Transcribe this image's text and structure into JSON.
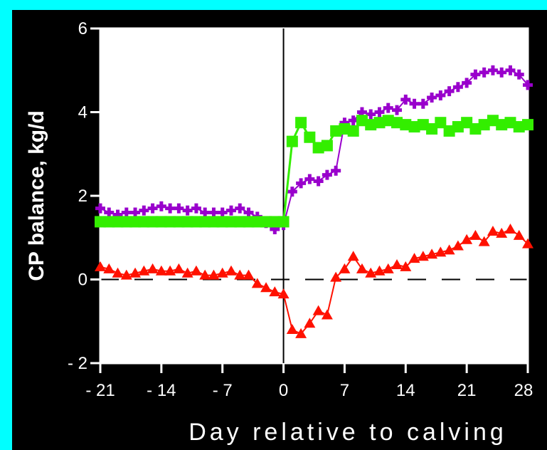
{
  "colors": {
    "border": "#00ffff",
    "background": "#000000",
    "axis": "#ffffff",
    "plot_area": "#ffffff",
    "zero_line": "#000000"
  },
  "chart_data": {
    "type": "line",
    "title": "",
    "xlabel": "Day relative to calving",
    "ylabel": "CP balance, kg/d",
    "xlim": [
      -21,
      28
    ],
    "ylim": [
      -2,
      6
    ],
    "x_ticks": [
      -21,
      -14,
      -7,
      0,
      7,
      14,
      21,
      28
    ],
    "x_tick_labels": [
      "- 21",
      "- 14",
      "- 7",
      "0",
      "7",
      "14",
      "21",
      "28"
    ],
    "y_ticks": [
      -2,
      0,
      2,
      4,
      6
    ],
    "y_tick_labels": [
      "- 2",
      "0",
      "2",
      "4",
      "6"
    ],
    "vertical_line_x": 0,
    "dashed_reference_y": 0,
    "grid": false,
    "legend": "none",
    "series": [
      {
        "color": "#9900cc",
        "marker": "plus",
        "x": [
          -21,
          -20,
          -19,
          -18,
          -17,
          -16,
          -15,
          -14,
          -13,
          -12,
          -11,
          -10,
          -9,
          -8,
          -7,
          -6,
          -5,
          -4,
          -3,
          -2,
          -1,
          0,
          1,
          2,
          3,
          4,
          5,
          6,
          7,
          8,
          9,
          10,
          11,
          12,
          13,
          14,
          15,
          16,
          17,
          18,
          19,
          20,
          21,
          22,
          23,
          24,
          25,
          26,
          27,
          28
        ],
        "y": [
          1.7,
          1.6,
          1.55,
          1.6,
          1.6,
          1.65,
          1.7,
          1.75,
          1.7,
          1.7,
          1.65,
          1.7,
          1.6,
          1.6,
          1.6,
          1.65,
          1.7,
          1.6,
          1.5,
          1.35,
          1.2,
          1.3,
          2.1,
          2.3,
          2.4,
          2.35,
          2.5,
          2.6,
          3.75,
          3.8,
          4.0,
          3.95,
          4.0,
          4.1,
          4.05,
          4.3,
          4.2,
          4.2,
          4.35,
          4.4,
          4.5,
          4.6,
          4.7,
          4.9,
          4.95,
          5.0,
          4.95,
          5.0,
          4.9,
          4.65
        ]
      },
      {
        "color": "#33ee00",
        "marker": "square",
        "x": [
          -21,
          -20,
          -19,
          -18,
          -17,
          -16,
          -15,
          -14,
          -13,
          -12,
          -11,
          -10,
          -9,
          -8,
          -7,
          -6,
          -5,
          -4,
          -3,
          -2,
          -1,
          0,
          1,
          2,
          3,
          4,
          5,
          6,
          7,
          8,
          9,
          10,
          11,
          12,
          13,
          14,
          15,
          16,
          17,
          18,
          19,
          20,
          21,
          22,
          23,
          24,
          25,
          26,
          27,
          28
        ],
        "y": [
          1.38,
          1.38,
          1.38,
          1.38,
          1.38,
          1.38,
          1.38,
          1.38,
          1.38,
          1.38,
          1.38,
          1.38,
          1.38,
          1.38,
          1.38,
          1.38,
          1.38,
          1.38,
          1.38,
          1.38,
          1.38,
          1.38,
          3.3,
          3.75,
          3.4,
          3.15,
          3.2,
          3.55,
          3.6,
          3.55,
          3.8,
          3.7,
          3.75,
          3.8,
          3.75,
          3.7,
          3.65,
          3.7,
          3.6,
          3.75,
          3.55,
          3.65,
          3.75,
          3.6,
          3.7,
          3.8,
          3.7,
          3.75,
          3.65,
          3.7
        ]
      },
      {
        "color": "#ff1100",
        "marker": "triangle",
        "x": [
          -21,
          -20,
          -19,
          -18,
          -17,
          -16,
          -15,
          -14,
          -13,
          -12,
          -11,
          -10,
          -9,
          -8,
          -7,
          -6,
          -5,
          -4,
          -3,
          -2,
          -1,
          0,
          1,
          2,
          3,
          4,
          5,
          6,
          7,
          8,
          9,
          10,
          11,
          12,
          13,
          14,
          15,
          16,
          17,
          18,
          19,
          20,
          21,
          22,
          23,
          24,
          25,
          26,
          27,
          28
        ],
        "y": [
          0.3,
          0.25,
          0.15,
          0.1,
          0.15,
          0.2,
          0.25,
          0.2,
          0.2,
          0.25,
          0.15,
          0.2,
          0.1,
          0.1,
          0.15,
          0.2,
          0.1,
          0.1,
          -0.1,
          -0.2,
          -0.3,
          -0.35,
          -1.2,
          -1.3,
          -1.05,
          -0.75,
          -0.85,
          0.05,
          0.25,
          0.55,
          0.25,
          0.15,
          0.2,
          0.25,
          0.35,
          0.3,
          0.5,
          0.55,
          0.6,
          0.65,
          0.7,
          0.8,
          0.95,
          1.05,
          0.9,
          1.15,
          1.1,
          1.2,
          1.05,
          0.85
        ]
      }
    ]
  }
}
